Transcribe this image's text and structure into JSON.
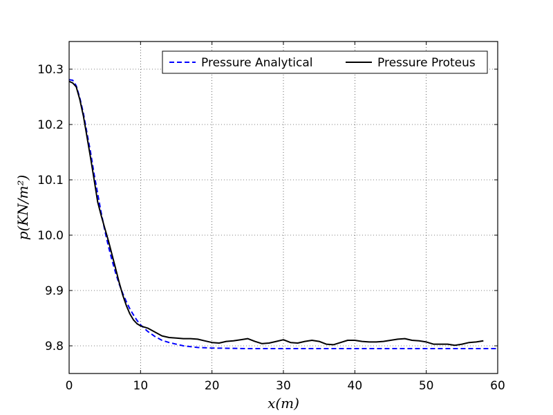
{
  "chart_data": {
    "type": "line",
    "title": "",
    "xlabel": "x(m)",
    "ylabel": "p(KN/m²)",
    "xlim": [
      0,
      60
    ],
    "ylim": [
      9.75,
      10.35
    ],
    "xticks": [
      0,
      10,
      20,
      30,
      40,
      50,
      60
    ],
    "xtick_labels": [
      "0",
      "10",
      "20",
      "30",
      "40",
      "50",
      "60"
    ],
    "yticks": [
      9.8,
      9.9,
      10.0,
      10.1,
      10.2,
      10.3
    ],
    "ytick_labels": [
      "9.8",
      "9.9",
      "10.0",
      "10.1",
      "10.2",
      "10.3"
    ],
    "grid": true,
    "legend_position": "top-right",
    "series": [
      {
        "name": "Pressure Analytical",
        "color": "#0000ff",
        "style": "dashed",
        "x": [
          0,
          0.5,
          1,
          1.5,
          2,
          2.5,
          3,
          3.5,
          4,
          4.5,
          5,
          5.5,
          6,
          6.5,
          7,
          7.5,
          8,
          8.5,
          9,
          9.5,
          10,
          11,
          12,
          13,
          14,
          15,
          16,
          18,
          20,
          25,
          30,
          40,
          50,
          60
        ],
        "y": [
          10.281,
          10.28,
          10.27,
          10.248,
          10.22,
          10.185,
          10.15,
          10.11,
          10.075,
          10.04,
          10.008,
          9.98,
          9.955,
          9.932,
          9.912,
          9.895,
          9.88,
          9.867,
          9.856,
          9.846,
          9.838,
          9.826,
          9.817,
          9.81,
          9.806,
          9.803,
          9.8,
          9.797,
          9.796,
          9.795,
          9.795,
          9.795,
          9.795,
          9.795
        ]
      },
      {
        "name": "Pressure Proteus",
        "color": "#000000",
        "style": "solid",
        "x": [
          0,
          0.5,
          1,
          1.5,
          2,
          2.5,
          3,
          3.5,
          4,
          4.5,
          5,
          5.5,
          6,
          6.5,
          7,
          7.5,
          8,
          8.5,
          9,
          9.5,
          10,
          10.5,
          11,
          12,
          13,
          14,
          15,
          16,
          17,
          18,
          19,
          20,
          21,
          22,
          23,
          24,
          25,
          26,
          27,
          28,
          29,
          30,
          31,
          32,
          33,
          34,
          35,
          36,
          37,
          38,
          39,
          40,
          41,
          42,
          43,
          44,
          45,
          46,
          47,
          48,
          49,
          50,
          51,
          52,
          53,
          54,
          55,
          56,
          57,
          58
        ],
        "y": [
          10.278,
          10.275,
          10.268,
          10.245,
          10.215,
          10.178,
          10.14,
          10.1,
          10.06,
          10.035,
          10.012,
          9.99,
          9.965,
          9.94,
          9.915,
          9.892,
          9.873,
          9.858,
          9.847,
          9.84,
          9.836,
          9.834,
          9.832,
          9.825,
          9.818,
          9.815,
          9.814,
          9.813,
          9.813,
          9.812,
          9.809,
          9.806,
          9.805,
          9.808,
          9.809,
          9.811,
          9.813,
          9.808,
          9.804,
          9.805,
          9.808,
          9.811,
          9.806,
          9.805,
          9.808,
          9.81,
          9.808,
          9.803,
          9.802,
          9.806,
          9.81,
          9.81,
          9.808,
          9.807,
          9.807,
          9.808,
          9.81,
          9.812,
          9.813,
          9.81,
          9.809,
          9.807,
          9.803,
          9.803,
          9.803,
          9.801,
          9.803,
          9.806,
          9.807,
          9.809
        ]
      }
    ]
  }
}
